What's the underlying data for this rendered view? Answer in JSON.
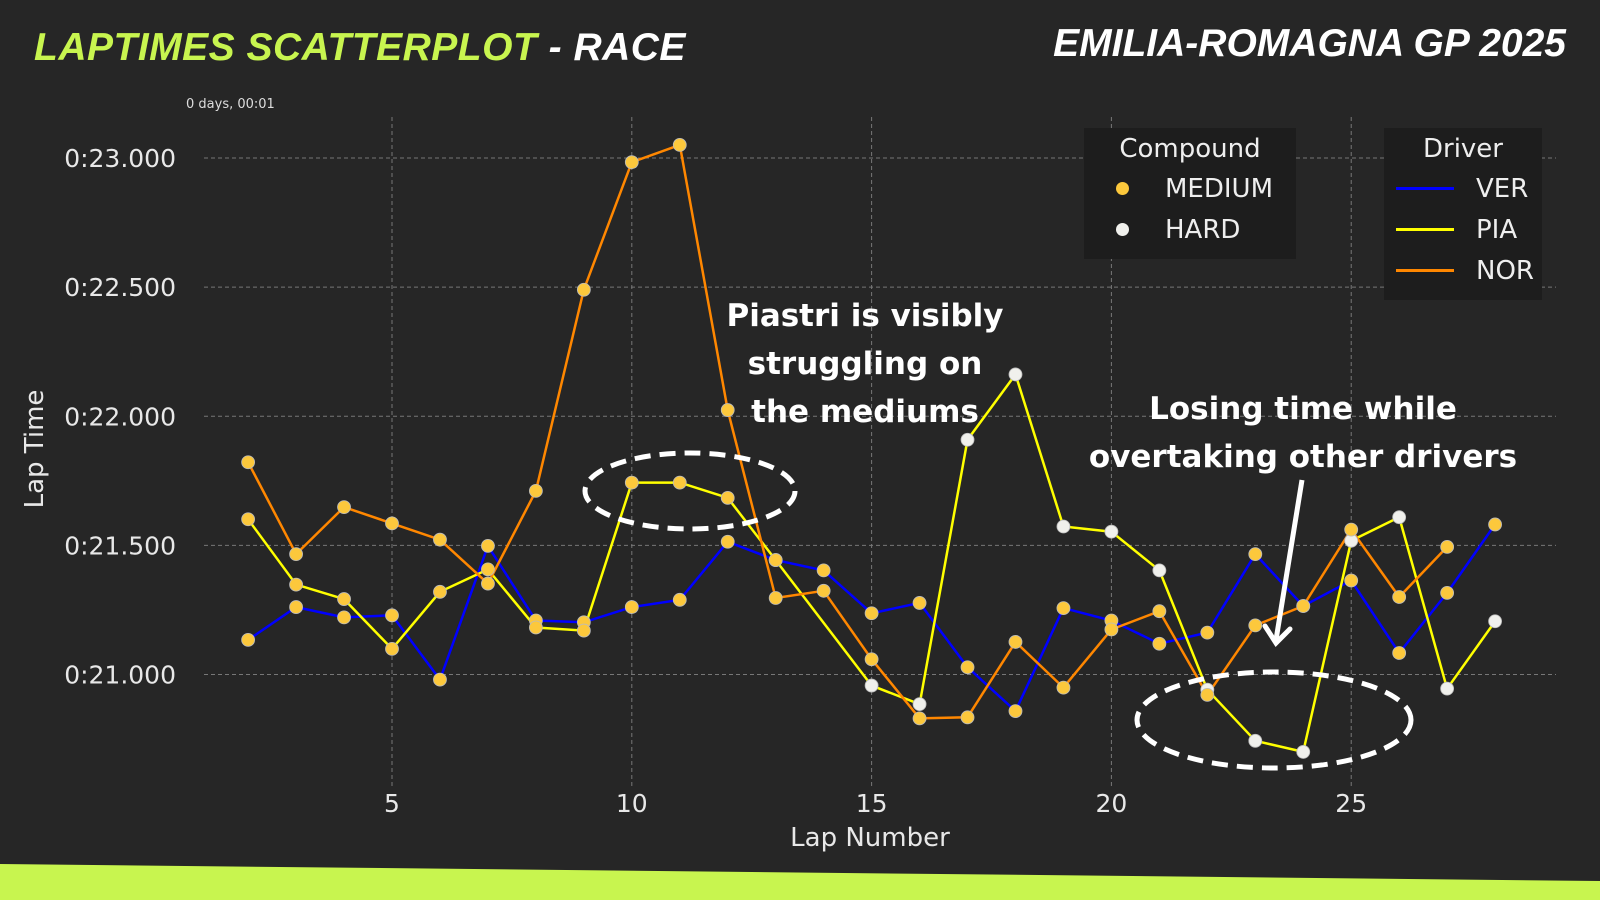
{
  "header": {
    "title_highlight": "LAPTIMES SCATTERPLOT",
    "title_rest": " - RACE",
    "event": "EMILIA-ROMAGNA GP 2025"
  },
  "colors": {
    "accent": "#c8f54f",
    "background": "#262626",
    "MEDIUM": "#fcc83c",
    "HARD": "#f0f0ec",
    "VER": "#0000ff",
    "PIA": "#ffff00",
    "NOR": "#ff8700"
  },
  "chart_data": {
    "type": "scatter",
    "xlabel": "Lap Number",
    "ylabel": "Lap Time",
    "offset_label": "0 days, 00:01",
    "xlim": [
      1.08,
      29.27
    ],
    "ylim": [
      20.568,
      23.159
    ],
    "xticks": [
      5,
      10,
      15,
      20,
      25
    ],
    "yticks": [
      {
        "value": 21.0,
        "label": "0:21.000"
      },
      {
        "value": 21.5,
        "label": "0:21.500"
      },
      {
        "value": 22.0,
        "label": "0:22.000"
      },
      {
        "value": 22.5,
        "label": "0:22.500"
      },
      {
        "value": 23.0,
        "label": "0:23.000"
      }
    ],
    "grid": true,
    "x": [
      2,
      3,
      4,
      5,
      6,
      7,
      8,
      9,
      10,
      11,
      12,
      13,
      14,
      15,
      16,
      17,
      18,
      19,
      20,
      21,
      22,
      23,
      24,
      25,
      26,
      27,
      28
    ],
    "series": [
      {
        "name": "VER",
        "color": "#0000ff",
        "values": [
          21.134,
          21.261,
          21.221,
          21.229,
          20.98,
          21.498,
          21.209,
          21.202,
          21.261,
          21.289,
          21.514,
          21.443,
          21.403,
          21.237,
          21.277,
          21.028,
          20.858,
          21.257,
          21.209,
          21.119,
          21.162,
          21.466,
          21.265,
          21.364,
          21.083,
          21.316,
          21.581
        ],
        "compound": [
          "MEDIUM",
          "MEDIUM",
          "MEDIUM",
          "MEDIUM",
          "MEDIUM",
          "MEDIUM",
          "MEDIUM",
          "MEDIUM",
          "MEDIUM",
          "MEDIUM",
          "MEDIUM",
          "MEDIUM",
          "MEDIUM",
          "MEDIUM",
          "MEDIUM",
          "MEDIUM",
          "MEDIUM",
          "MEDIUM",
          "MEDIUM",
          "MEDIUM",
          "MEDIUM",
          "MEDIUM",
          "MEDIUM",
          "MEDIUM",
          "MEDIUM",
          "MEDIUM",
          "MEDIUM"
        ]
      },
      {
        "name": "PIA",
        "color": "#ffff00",
        "values": [
          21.601,
          21.348,
          21.292,
          21.099,
          21.32,
          21.407,
          21.182,
          21.17,
          21.743,
          21.743,
          21.684,
          21.443,
          null,
          20.957,
          20.885,
          21.909,
          22.162,
          21.573,
          21.553,
          21.403,
          20.941,
          20.743,
          20.7,
          21.518,
          21.609,
          20.945,
          21.206
        ],
        "compound": [
          "MEDIUM",
          "MEDIUM",
          "MEDIUM",
          "MEDIUM",
          "MEDIUM",
          "MEDIUM",
          "MEDIUM",
          "MEDIUM",
          "MEDIUM",
          "MEDIUM",
          "MEDIUM",
          "MEDIUM",
          null,
          "HARD",
          "HARD",
          "HARD",
          "HARD",
          "HARD",
          "HARD",
          "HARD",
          "HARD",
          "HARD",
          "HARD",
          "HARD",
          "HARD",
          "HARD",
          "HARD"
        ]
      },
      {
        "name": "NOR",
        "color": "#ff8700",
        "values": [
          21.822,
          21.466,
          21.648,
          21.585,
          21.522,
          21.352,
          21.711,
          22.49,
          22.984,
          23.051,
          22.024,
          21.296,
          21.324,
          21.059,
          20.83,
          20.834,
          21.126,
          20.949,
          21.174,
          21.245,
          20.921,
          21.19,
          21.265,
          21.561,
          21.3,
          21.494,
          null
        ],
        "compound": [
          "MEDIUM",
          "MEDIUM",
          "MEDIUM",
          "MEDIUM",
          "MEDIUM",
          "MEDIUM",
          "MEDIUM",
          "MEDIUM",
          "MEDIUM",
          "MEDIUM",
          "MEDIUM",
          "MEDIUM",
          "MEDIUM",
          "MEDIUM",
          "MEDIUM",
          "MEDIUM",
          "MEDIUM",
          "MEDIUM",
          "MEDIUM",
          "MEDIUM",
          "MEDIUM",
          "MEDIUM",
          "MEDIUM",
          "MEDIUM",
          "MEDIUM",
          "MEDIUM",
          null
        ]
      }
    ],
    "legend_compound": {
      "title": "Compound",
      "placement": "top-right",
      "entries": [
        {
          "label": "MEDIUM",
          "color": "#fcc83c"
        },
        {
          "label": "HARD",
          "color": "#f0f0ec"
        }
      ]
    },
    "legend_driver": {
      "title": "Driver",
      "placement": "top-right",
      "entries": [
        {
          "label": "VER",
          "color": "#0000ff"
        },
        {
          "label": "PIA",
          "color": "#ffff00"
        },
        {
          "label": "NOR",
          "color": "#ff8700"
        }
      ]
    },
    "annotations": [
      {
        "text_1": "Piastri is visibly",
        "text_2": "struggling on",
        "text_3": "the mediums"
      },
      {
        "text_1": "Losing time while",
        "text_2": "overtaking other drivers"
      }
    ]
  }
}
